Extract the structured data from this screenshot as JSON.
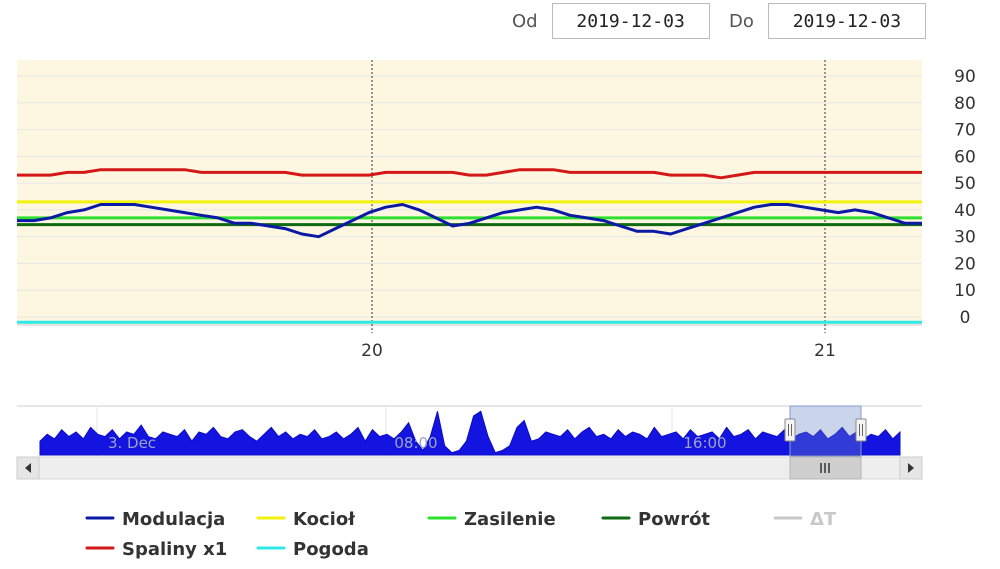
{
  "date_range": {
    "from_label": "Od",
    "from_value": "2019-12-03",
    "to_label": "Do",
    "to_value": "2019-12-03"
  },
  "chart_data": {
    "type": "line",
    "title": "",
    "xlabel": "",
    "ylabel": "",
    "ylim": [
      -3,
      96
    ],
    "y_ticks": [
      "0",
      "10",
      "20",
      "30",
      "40",
      "50",
      "60",
      "70",
      "80",
      "90"
    ],
    "x_ticks": [
      "20",
      "21"
    ],
    "grid": true,
    "legend_position": "bottom",
    "series": [
      {
        "name": "Modulacja",
        "color": "#0b1aa5",
        "values": [
          36,
          36,
          37,
          39,
          40,
          42,
          42,
          42,
          41,
          40,
          39,
          38,
          37,
          35,
          35,
          34,
          33,
          31,
          30,
          33,
          36,
          39,
          41,
          42,
          40,
          37,
          34,
          35,
          37,
          39,
          40,
          41,
          40,
          38,
          37,
          36,
          34,
          32,
          32,
          31,
          33,
          35,
          37,
          39,
          41,
          42,
          42,
          41,
          40,
          39,
          40,
          39,
          37,
          35,
          35
        ]
      },
      {
        "name": "Kocioł",
        "color": "#f2f20a",
        "values": [
          43,
          43,
          43,
          43,
          43,
          43,
          43,
          43,
          43,
          43,
          43,
          43,
          43,
          43,
          43,
          43,
          43,
          43,
          43,
          43,
          43,
          43,
          43,
          43,
          43,
          43,
          43,
          43,
          43,
          43,
          43,
          43,
          43,
          43,
          43,
          43,
          43,
          43,
          43,
          43,
          43,
          43,
          43,
          43,
          43,
          43,
          43,
          43,
          43,
          43,
          43,
          43,
          43,
          43,
          43
        ]
      },
      {
        "name": "Zasilenie",
        "color": "#2ee02e",
        "values": [
          37,
          37,
          37,
          37,
          37,
          37,
          37,
          37,
          37,
          37,
          37,
          37,
          37,
          37,
          37,
          37,
          37,
          37,
          37,
          37,
          37,
          37,
          37,
          37,
          37,
          37,
          37,
          37,
          37,
          37,
          37,
          37,
          37,
          37,
          37,
          37,
          37,
          37,
          37,
          37,
          37,
          37,
          37,
          37,
          37,
          37,
          37,
          37,
          37,
          37,
          37,
          37,
          37,
          37,
          37
        ]
      },
      {
        "name": "Powrót",
        "color": "#0f6a12",
        "values": [
          34.5,
          34.5,
          34.5,
          34.5,
          34.5,
          34.5,
          34.5,
          34.5,
          34.5,
          34.5,
          34.5,
          34.5,
          34.5,
          34.5,
          34.5,
          34.5,
          34.5,
          34.5,
          34.5,
          34.5,
          34.5,
          34.5,
          34.5,
          34.5,
          34.5,
          34.5,
          34.5,
          34.5,
          34.5,
          34.5,
          34.5,
          34.5,
          34.5,
          34.5,
          34.5,
          34.5,
          34.5,
          34.5,
          34.5,
          34.5,
          34.5,
          34.5,
          34.5,
          34.5,
          34.5,
          34.5,
          34.5,
          34.5,
          34.5,
          34.5,
          34.5,
          34.5,
          34.5,
          34.5,
          34.5
        ]
      },
      {
        "name": "Spaliny x1",
        "color": "#d41818",
        "values": [
          53,
          53,
          53,
          54,
          54,
          55,
          55,
          55,
          55,
          55,
          55,
          54,
          54,
          54,
          54,
          54,
          54,
          53,
          53,
          53,
          53,
          53,
          54,
          54,
          54,
          54,
          54,
          53,
          53,
          54,
          55,
          55,
          55,
          54,
          54,
          54,
          54,
          54,
          54,
          53,
          53,
          53,
          52,
          53,
          54,
          54,
          54,
          54,
          54,
          54,
          54,
          54,
          54,
          54,
          54
        ]
      },
      {
        "name": "Pogoda",
        "color": "#2ee8e8",
        "values": [
          -2,
          -2,
          -2,
          -2,
          -2,
          -2,
          -2,
          -2,
          -2,
          -2,
          -2,
          -2,
          -2,
          -2,
          -2,
          -2,
          -2,
          -2,
          -2,
          -2,
          -2,
          -2,
          -2,
          -2,
          -2,
          -2,
          -2,
          -2,
          -2,
          -2,
          -2,
          -2,
          -2,
          -2,
          -2,
          -2,
          -2,
          -2,
          -2,
          -2,
          -2,
          -2,
          -2,
          -2,
          -2,
          -2,
          -2,
          -2,
          -2,
          -2,
          -2,
          -2,
          -2,
          -2,
          -2
        ]
      },
      {
        "name": "ΔT",
        "color": "#c8c8c8",
        "hidden": true,
        "values": []
      }
    ],
    "navigator": {
      "labels": [
        "3. Dec",
        "08:00",
        "16:00"
      ],
      "profile": [
        0.3,
        0.45,
        0.35,
        0.55,
        0.4,
        0.5,
        0.35,
        0.6,
        0.45,
        0.4,
        0.55,
        0.35,
        0.5,
        0.45,
        0.65,
        0.4,
        0.35,
        0.5,
        0.45,
        0.4,
        0.55,
        0.3,
        0.5,
        0.45,
        0.6,
        0.4,
        0.35,
        0.5,
        0.55,
        0.4,
        0.3,
        0.45,
        0.6,
        0.4,
        0.5,
        0.35,
        0.45,
        0.4,
        0.55,
        0.35,
        0.4,
        0.5,
        0.35,
        0.45,
        0.6,
        0.3,
        0.55,
        0.4,
        0.45,
        0.35,
        0.5,
        0.7,
        0.3,
        0.1,
        0.4,
        0.95,
        0.2,
        0.05,
        0.1,
        0.3,
        0.85,
        0.95,
        0.4,
        0.05,
        0.1,
        0.2,
        0.6,
        0.75,
        0.3,
        0.35,
        0.5,
        0.45,
        0.4,
        0.55,
        0.35,
        0.5,
        0.6,
        0.4,
        0.45,
        0.35,
        0.55,
        0.4,
        0.5,
        0.45,
        0.35,
        0.6,
        0.4,
        0.45,
        0.5,
        0.35,
        0.55,
        0.4,
        0.45,
        0.5,
        0.35,
        0.6,
        0.4,
        0.45,
        0.55,
        0.35,
        0.5,
        0.45,
        0.4,
        0.55,
        0.35,
        0.45,
        0.5,
        0.4,
        0.55,
        0.35,
        0.45,
        0.6,
        0.4,
        0.5,
        0.35,
        0.45,
        0.4,
        0.55,
        0.35,
        0.5
      ]
    }
  }
}
